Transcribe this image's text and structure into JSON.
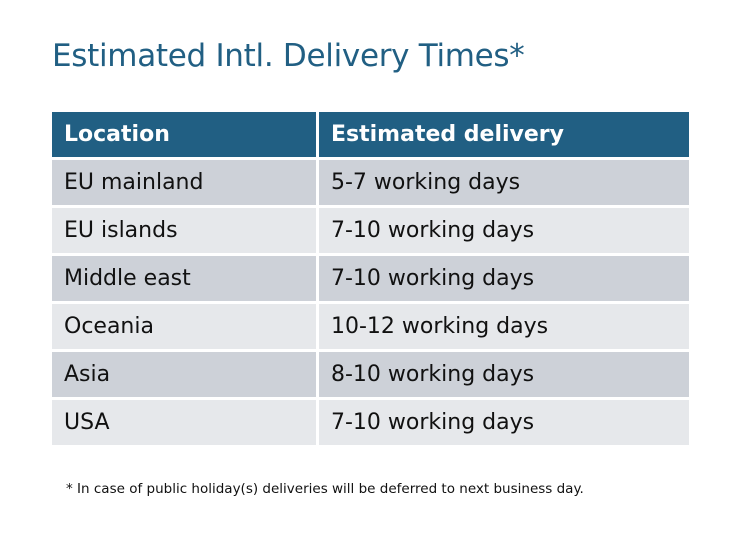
{
  "title": "Estimated Intl. Delivery Times*",
  "table": {
    "headers": [
      "Location",
      "Estimated delivery"
    ],
    "rows": [
      [
        "EU mainland",
        "5-7 working days"
      ],
      [
        "EU islands",
        "7-10 working days"
      ],
      [
        "Middle east",
        "7-10 working days"
      ],
      [
        "Oceania",
        "10-12 working days"
      ],
      [
        "Asia",
        "8-10 working days"
      ],
      [
        "USA",
        "7-10 working days"
      ]
    ]
  },
  "footnote": "* In case of public holiday(s) deliveries will be deferred to next business day.",
  "colors": {
    "header": "#215f83",
    "row_dark": "#cdd1d8",
    "row_light": "#e6e8eb",
    "title": "#215f83"
  }
}
